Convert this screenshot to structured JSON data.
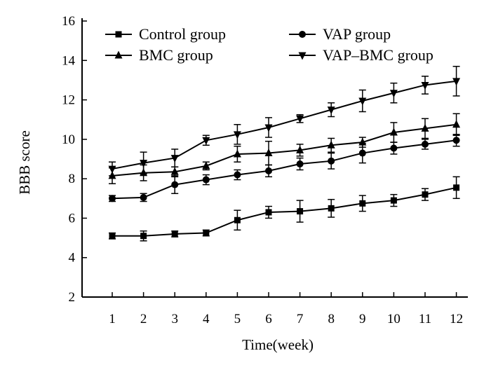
{
  "chart_data": {
    "type": "line",
    "title": "",
    "xlabel": "Time(week)",
    "ylabel": "BBB score",
    "x": [
      1,
      2,
      3,
      4,
      5,
      6,
      7,
      8,
      9,
      10,
      11,
      12
    ],
    "xlim": [
      0,
      12.4
    ],
    "ylim": [
      2,
      16
    ],
    "yticks": [
      2,
      4,
      6,
      8,
      10,
      12,
      14,
      16
    ],
    "grid": false,
    "legend": "top, two columns",
    "series": [
      {
        "name": "Control group",
        "marker": "square",
        "values": [
          5.1,
          5.1,
          5.2,
          5.25,
          5.9,
          6.3,
          6.35,
          6.5,
          6.75,
          6.9,
          7.2,
          7.55
        ],
        "errors": [
          0.15,
          0.25,
          0.15,
          0.15,
          0.5,
          0.3,
          0.55,
          0.45,
          0.4,
          0.3,
          0.3,
          0.55
        ]
      },
      {
        "name": "VAP group",
        "marker": "circle",
        "values": [
          7.0,
          7.05,
          7.7,
          7.95,
          8.2,
          8.4,
          8.75,
          8.9,
          9.3,
          9.55,
          9.75,
          9.95
        ],
        "errors": [
          0.15,
          0.2,
          0.45,
          0.25,
          0.25,
          0.3,
          0.3,
          0.4,
          0.5,
          0.3,
          0.25,
          0.3
        ]
      },
      {
        "name": "BMC group",
        "marker": "triangle-up",
        "values": [
          8.15,
          8.3,
          8.35,
          8.65,
          9.25,
          9.3,
          9.45,
          9.7,
          9.85,
          10.35,
          10.55,
          10.75
        ],
        "errors": [
          0.4,
          0.4,
          0.25,
          0.2,
          0.4,
          0.6,
          0.3,
          0.35,
          0.25,
          0.5,
          0.5,
          0.55
        ]
      },
      {
        "name": "VAP–BMC group",
        "marker": "triangle-down",
        "values": [
          8.5,
          8.8,
          9.05,
          9.95,
          10.25,
          10.6,
          11.05,
          11.5,
          11.95,
          12.35,
          12.75,
          12.95
        ],
        "errors": [
          0.35,
          0.55,
          0.45,
          0.25,
          0.5,
          0.5,
          0.2,
          0.35,
          0.55,
          0.5,
          0.45,
          0.75
        ]
      }
    ]
  }
}
